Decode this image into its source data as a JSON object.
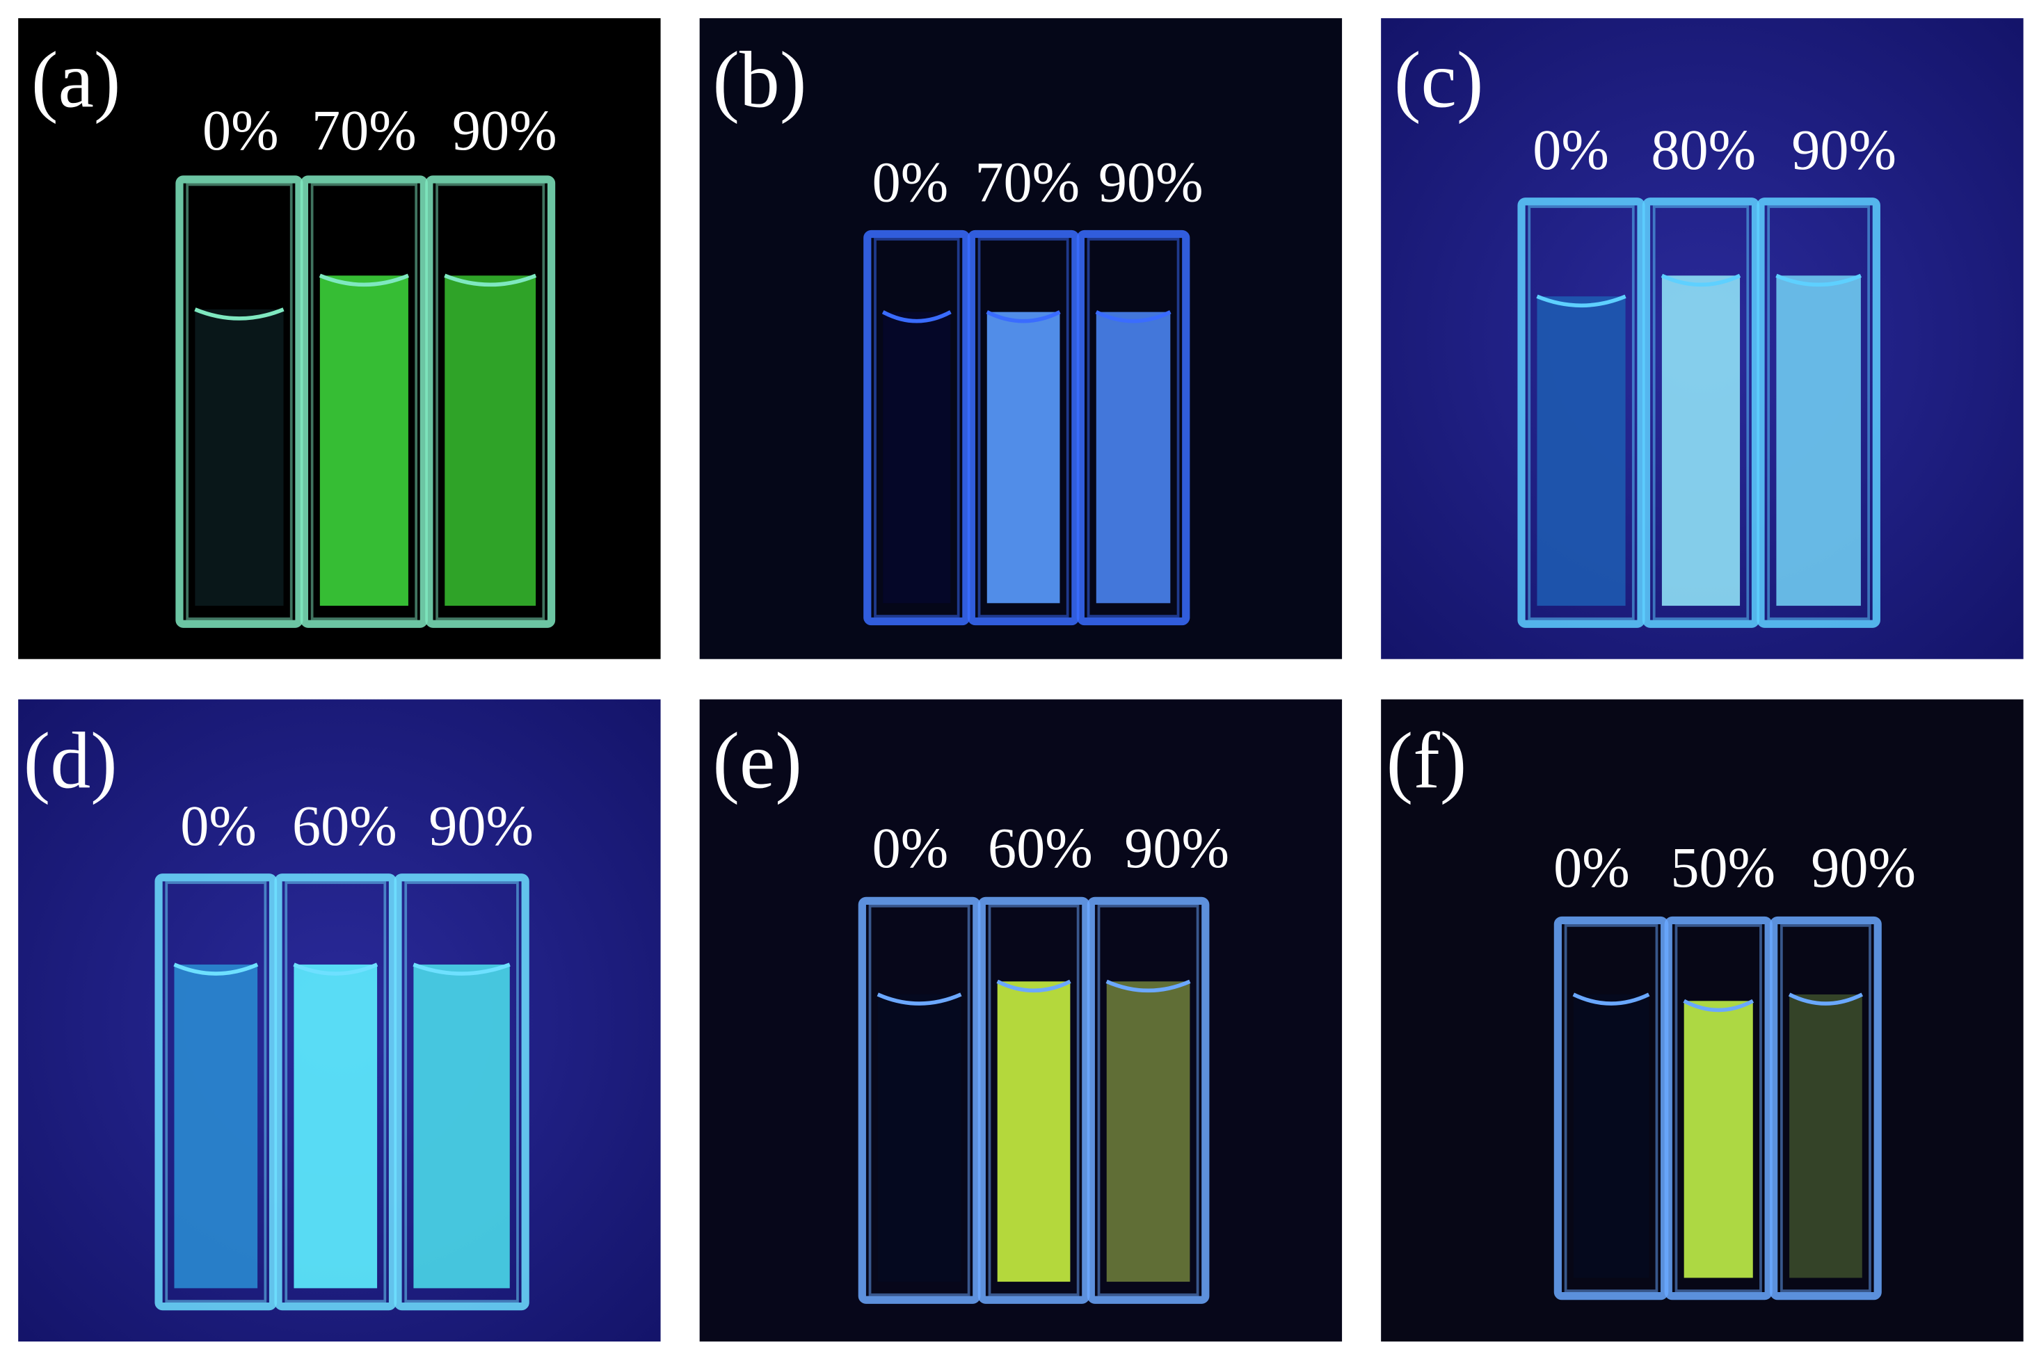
{
  "panels": [
    {
      "label": "(a)",
      "tubes": [
        "0%",
        "70%",
        "90%"
      ]
    },
    {
      "label": "(b)",
      "tubes": [
        "0%",
        "70%",
        "90%"
      ]
    },
    {
      "label": "(c)",
      "tubes": [
        "0%",
        "80%",
        "90%"
      ]
    },
    {
      "label": "(d)",
      "tubes": [
        "0%",
        "60%",
        "90%"
      ]
    },
    {
      "label": "(e)",
      "tubes": [
        "0%",
        "60%",
        "90%"
      ]
    },
    {
      "label": "(f)",
      "tubes": [
        "0%",
        "50%",
        "90%"
      ]
    }
  ]
}
